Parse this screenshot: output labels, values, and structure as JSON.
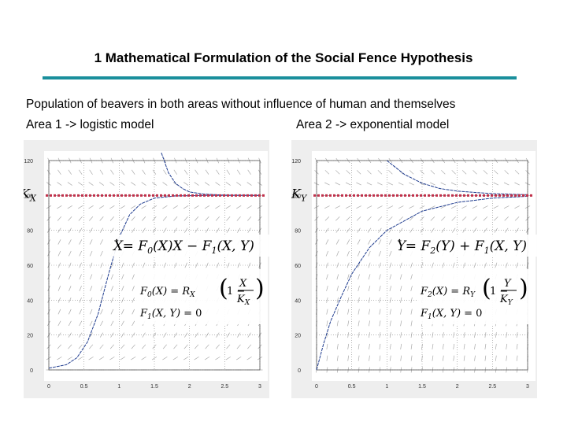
{
  "slide": {
    "title": "1 Mathematical Formulation of the Social Fence Hypothesis",
    "subtitle": "Population of beavers in both areas without influence of human and themselves",
    "area1_label": "Area 1 -> logistic model",
    "area2_label": "Area 2 -> exponential model"
  },
  "colors": {
    "rule": "#1a8f9c",
    "carrying_capacity_line": "#c0304a",
    "trajectory": "#1f3c8f",
    "grid": "#888888",
    "panel_bg": "#eeeeee"
  },
  "chart_data": [
    {
      "type": "line",
      "xlim": [
        0,
        3
      ],
      "ylim": [
        0,
        120
      ],
      "x_ticks": [
        "0",
        "0.5",
        "1",
        "1.5",
        "2",
        "2.5",
        "3"
      ],
      "y_ticks": [
        "0",
        "20",
        "40",
        "60",
        "80",
        "100",
        "120"
      ],
      "grid": true,
      "capacity_label": "K_X",
      "capacity_value": 100,
      "equations": {
        "main": "Ẋ = F₀(X)X − F₁(X,Y)",
        "f0": "F₀(X) = R_X (1 − X / K_X)",
        "f1": "F₁(X,Y) = 0"
      },
      "series": [
        {
          "x": [
            0,
            0.25,
            0.4,
            0.55,
            0.7,
            0.85,
            1.0,
            1.15,
            1.3,
            1.5,
            1.8,
            2.2,
            3.0
          ],
          "values": [
            1,
            3,
            7,
            16,
            32,
            55,
            76,
            89,
            95,
            98.5,
            99.7,
            100,
            100
          ]
        },
        {
          "x": [
            1.6,
            1.7,
            1.8,
            1.9,
            2.0,
            2.2,
            2.5,
            3.0
          ],
          "values": [
            130,
            113,
            107,
            104,
            102,
            100.8,
            100.2,
            100
          ]
        }
      ]
    },
    {
      "type": "line",
      "xlim": [
        0,
        3
      ],
      "ylim": [
        0,
        120
      ],
      "x_ticks": [
        "0",
        "0.5",
        "1",
        "1.5",
        "2",
        "2.5",
        "3"
      ],
      "y_ticks": [
        "0",
        "20",
        "40",
        "60",
        "80",
        "100",
        "120"
      ],
      "grid": true,
      "capacity_label": "K_Y",
      "capacity_value": 100,
      "equations": {
        "main": "Ẏ = F₂(Y) + F₁(X,Y)",
        "f2": "F₂(X) = R_Y (1 − Y / K_Y)",
        "f1": "F₁(X,Y) = 0"
      },
      "series": [
        {
          "x": [
            0,
            0.1,
            0.2,
            0.35,
            0.5,
            0.75,
            1.0,
            1.5,
            2.0,
            2.5,
            3.0
          ],
          "values": [
            0,
            15,
            28,
            42,
            55,
            70,
            80,
            91,
            96,
            98.5,
            99.5
          ]
        },
        {
          "x": [
            1.0,
            1.25,
            1.5,
            1.75,
            2.0,
            2.5,
            3.0
          ],
          "values": [
            120,
            112,
            107,
            104,
            102.5,
            101,
            100.4
          ]
        }
      ]
    }
  ]
}
